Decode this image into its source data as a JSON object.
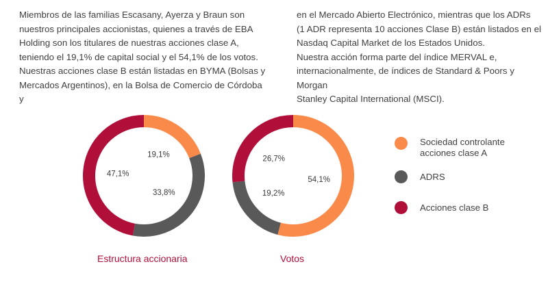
{
  "text": {
    "left_lines": [
      "Miembros de las familias Escasany, Ayerza y Braun son",
      "nuestros principales accionistas, quienes a través de EBA",
      "Holding son los titulares de nuestras acciones clase A,",
      "teniendo el 19,1% de capital social y el 54,1% de los votos.",
      "Nuestras acciones clase B están listadas en BYMA (Bolsas y",
      "Mercados Argentinos), en la Bolsa de Comercio de Córdoba y"
    ],
    "right_lines": [
      "en el Mercado Abierto Electrónico, mientras que los ADRs",
      "(1 ADR representa 10 acciones Clase B) están listados en el",
      "Nasdaq Capital Market de los Estados Unidos.",
      "Nuestra acción forma parte del índice MERVAL e,",
      "internacionalmente, de índices de Standard & Poors y Morgan",
      "Stanley Capital International (MSCI)."
    ]
  },
  "colors": {
    "sociedad": "#f98a4a",
    "adrs": "#595959",
    "clase_b": "#b00f3a",
    "caption": "#b00f3a"
  },
  "legend": [
    {
      "key": "sociedad",
      "label": "Sociedad controlante acciones clase A",
      "icon": "circle-swatch"
    },
    {
      "key": "adrs",
      "label": "ADRS",
      "icon": "circle-swatch"
    },
    {
      "key": "clase_b",
      "label": "Acciones clase B",
      "icon": "circle-swatch"
    }
  ],
  "chart_data": [
    {
      "type": "pie",
      "title": "Estructura accionaria",
      "slices": [
        {
          "key": "sociedad",
          "value": 19.1,
          "label": "19,1%"
        },
        {
          "key": "adrs",
          "value": 33.8,
          "label": "33,8%"
        },
        {
          "key": "clase_b",
          "value": 47.1,
          "label": "47,1%"
        }
      ]
    },
    {
      "type": "pie",
      "title": "Votos",
      "slices": [
        {
          "key": "sociedad",
          "value": 54.1,
          "label": "54,1%"
        },
        {
          "key": "adrs",
          "value": 19.2,
          "label": "19,2%"
        },
        {
          "key": "clase_b",
          "value": 26.7,
          "label": "26,7%"
        }
      ]
    }
  ]
}
